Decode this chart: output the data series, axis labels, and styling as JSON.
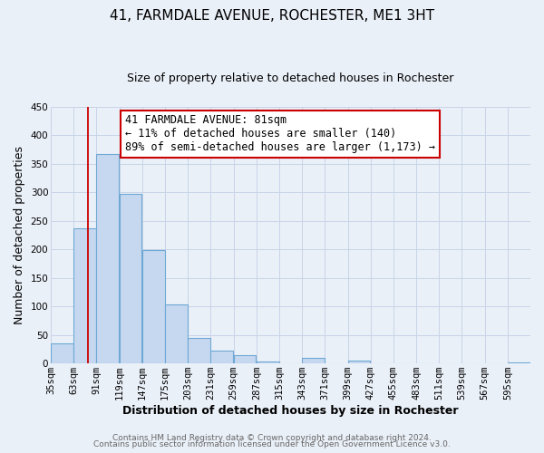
{
  "title": "41, FARMDALE AVENUE, ROCHESTER, ME1 3HT",
  "subtitle": "Size of property relative to detached houses in Rochester",
  "xlabel": "Distribution of detached houses by size in Rochester",
  "ylabel": "Number of detached properties",
  "bar_labels": [
    "35sqm",
    "63sqm",
    "91sqm",
    "119sqm",
    "147sqm",
    "175sqm",
    "203sqm",
    "231sqm",
    "259sqm",
    "287sqm",
    "315sqm",
    "343sqm",
    "371sqm",
    "399sqm",
    "427sqm",
    "455sqm",
    "483sqm",
    "511sqm",
    "539sqm",
    "567sqm",
    "595sqm"
  ],
  "bar_values": [
    35,
    237,
    367,
    297,
    198,
    104,
    45,
    22,
    14,
    3,
    0,
    9,
    0,
    5,
    0,
    0,
    0,
    0,
    0,
    0,
    2
  ],
  "bar_color": "#c5d8f0",
  "bar_edge_color": "#6fa8d4",
  "vline_x": 81,
  "vline_color": "#cc0000",
  "annotation_line1": "41 FARMDALE AVENUE: 81sqm",
  "annotation_line2": "← 11% of detached houses are smaller (140)",
  "annotation_line3": "89% of semi-detached houses are larger (1,173) →",
  "annotation_box_color": "#ffffff",
  "annotation_box_edge": "#cc0000",
  "ylim": [
    0,
    450
  ],
  "yticks": [
    0,
    50,
    100,
    150,
    200,
    250,
    300,
    350,
    400,
    450
  ],
  "grid_color": "#c8d4e8",
  "background_color": "#eaf0f8",
  "plot_bg_color": "#eaf0f8",
  "footer_line1": "Contains HM Land Registry data © Crown copyright and database right 2024.",
  "footer_line2": "Contains public sector information licensed under the Open Government Licence v3.0.",
  "bin_width": 28,
  "title_fontsize": 11,
  "subtitle_fontsize": 9,
  "xlabel_fontsize": 9,
  "ylabel_fontsize": 9,
  "tick_fontsize": 7.5,
  "footer_fontsize": 6.5,
  "annot_fontsize": 8.5
}
